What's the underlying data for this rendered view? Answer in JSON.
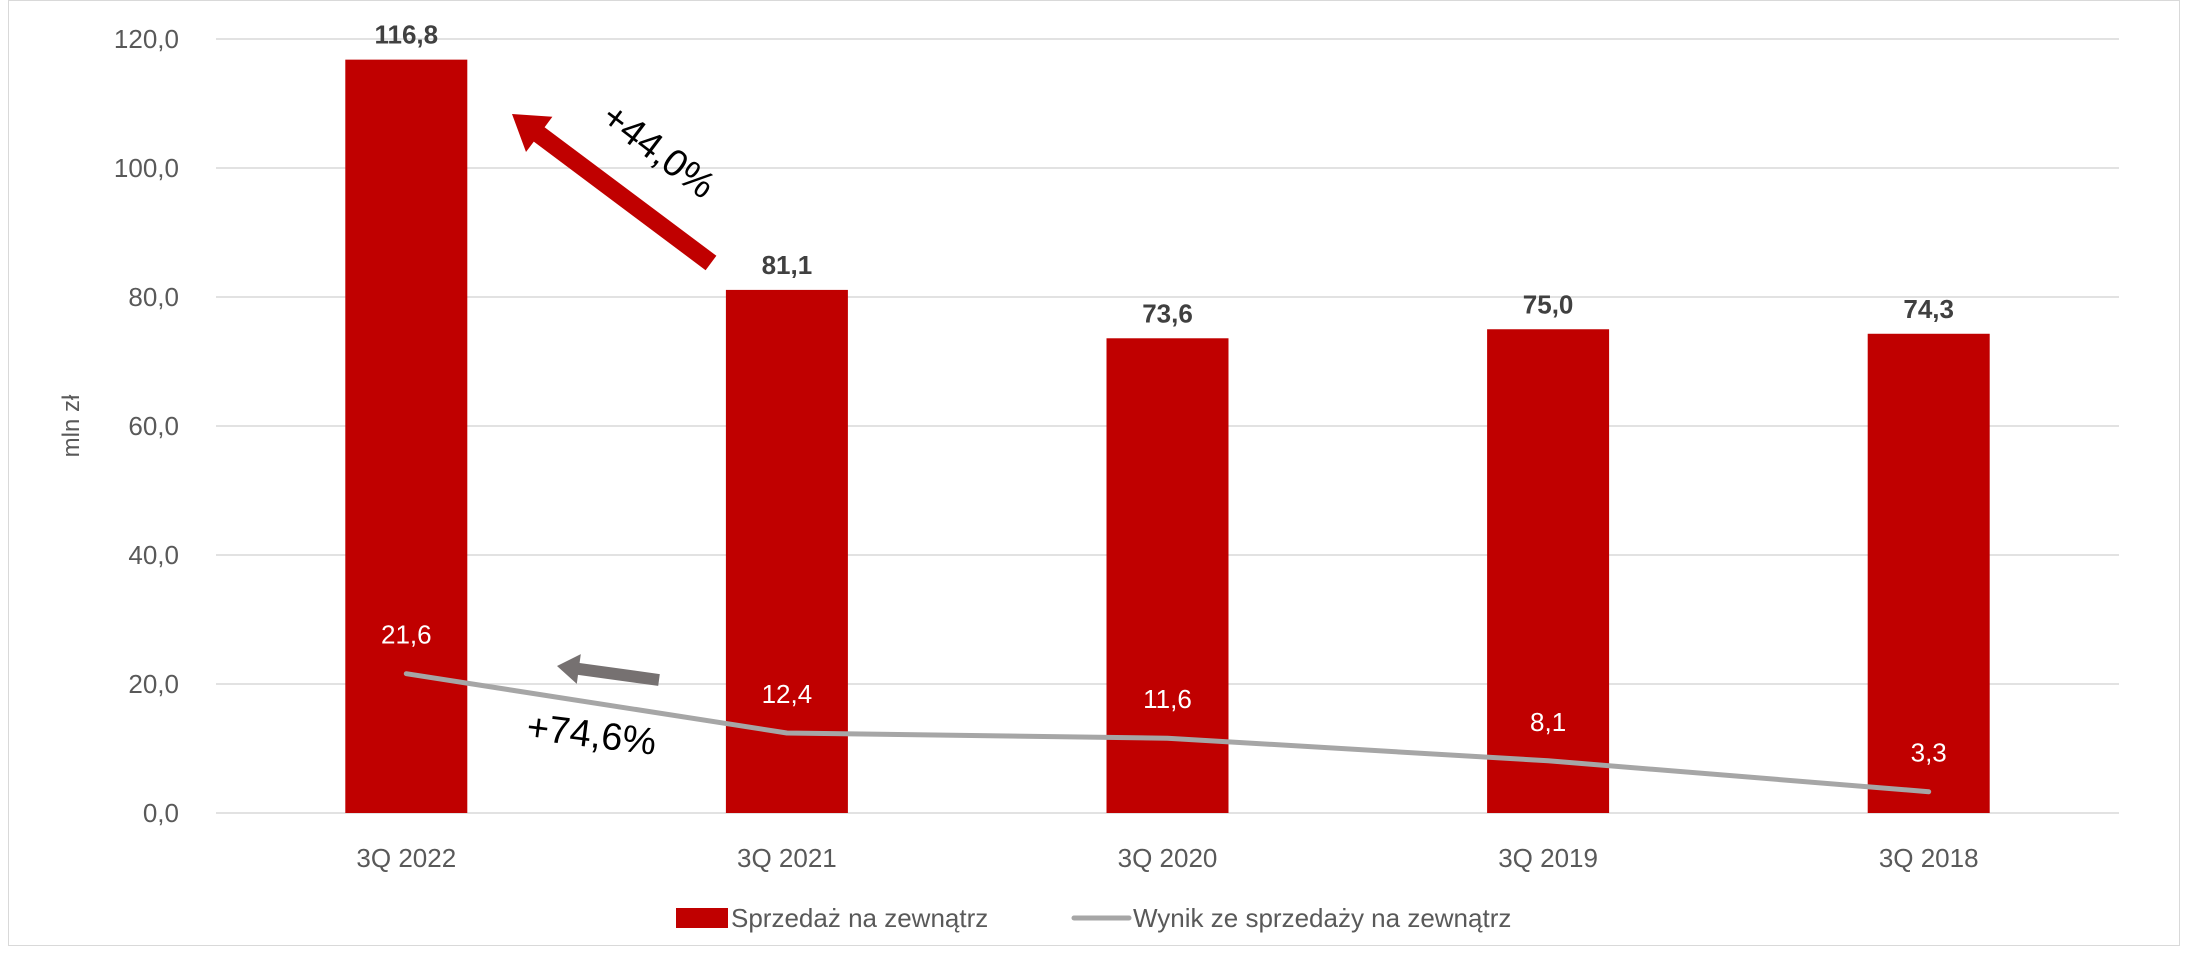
{
  "chart_data": {
    "type": "bar",
    "categories": [
      "3Q 2022",
      "3Q 2021",
      "3Q 2020",
      "3Q 2019",
      "3Q 2018"
    ],
    "series": [
      {
        "name": "Sprzedaż na zewnątrz",
        "type": "bar",
        "color": "#c00000",
        "values": [
          116.8,
          81.1,
          73.6,
          75.0,
          74.3
        ],
        "labels": [
          "116,8",
          "81,1",
          "73,6",
          "75,0",
          "74,3"
        ]
      },
      {
        "name": "Wynik ze sprzedaży na zewnątrz",
        "type": "line",
        "color": "#a6a6a6",
        "values": [
          21.6,
          12.4,
          11.6,
          8.1,
          3.3
        ],
        "labels": [
          "21,6",
          "12,4",
          "11,6",
          "8,1",
          "3,3"
        ]
      }
    ],
    "ylabel": "mln zł",
    "xlabel": "",
    "ylim": [
      0,
      120
    ],
    "yticks": [
      "0,0",
      "20,0",
      "40,0",
      "60,0",
      "80,0",
      "100,0",
      "120,0"
    ],
    "grid": true,
    "legend_position": "bottom",
    "annotations": [
      {
        "text": "+44,0%",
        "color": "#c00000",
        "series": "Sprzedaż na zewnątrz",
        "from": "3Q 2021",
        "to": "3Q 2022"
      },
      {
        "text": "+74,6%",
        "color": "#767171",
        "series": "Wynik ze sprzedaży na zewnątrz",
        "from": "3Q 2021",
        "to": "3Q 2022"
      }
    ]
  }
}
